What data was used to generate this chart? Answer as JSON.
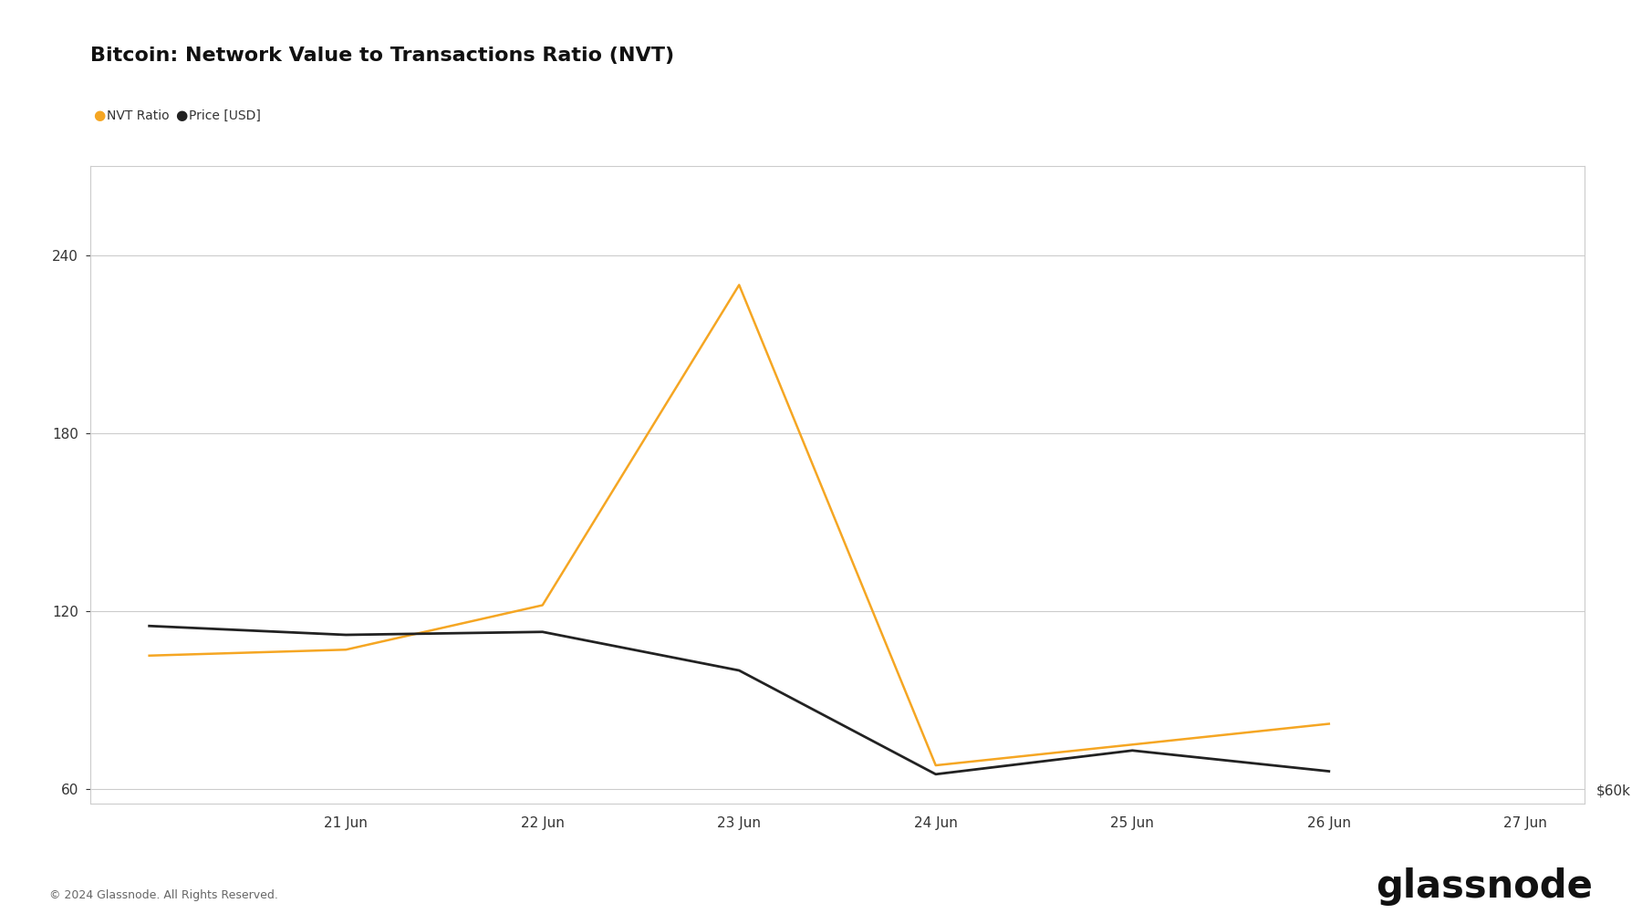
{
  "title": "Bitcoin: Network Value to Transactions Ratio (NVT)",
  "nvt_label": "NVT Ratio",
  "price_label": "Price [USD]",
  "copyright": "© 2024 Glassnode. All Rights Reserved.",
  "watermark": "glassnode",
  "right_label": "$60k",
  "x_ticks": [
    "21 Jun",
    "22 Jun",
    "23 Jun",
    "24 Jun",
    "25 Jun",
    "26 Jun",
    "27 Jun"
  ],
  "nvt_x": [
    0,
    1,
    2,
    3,
    4,
    5,
    6
  ],
  "nvt_y": [
    105,
    107,
    122,
    230,
    68,
    75,
    82
  ],
  "price_x": [
    0,
    1,
    2,
    3,
    4,
    5,
    6
  ],
  "price_y": [
    115,
    112,
    113,
    100,
    65,
    73,
    66
  ],
  "ylim": [
    55,
    270
  ],
  "yticks": [
    60,
    120,
    180,
    240
  ],
  "xlim": [
    -0.3,
    7.3
  ],
  "nvt_color": "#f5a623",
  "price_color": "#222222",
  "grid_color": "#cccccc",
  "bg_color": "#ffffff",
  "plot_bg": "#ffffff",
  "title_fontsize": 16,
  "legend_fontsize": 10,
  "tick_fontsize": 11,
  "watermark_fontsize": 30
}
